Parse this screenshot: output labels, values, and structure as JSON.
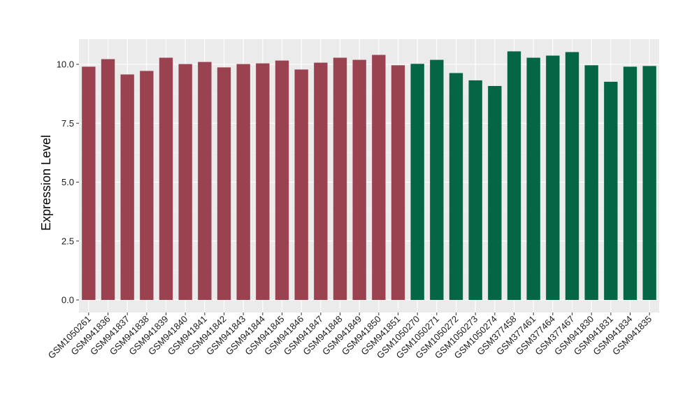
{
  "chart_data": {
    "type": "bar",
    "title": "",
    "xlabel": "",
    "ylabel": "Expression Level",
    "ylim": [
      0,
      11.25
    ],
    "yticks": [
      0.0,
      2.5,
      5.0,
      7.5,
      10.0
    ],
    "ytick_labels": [
      "0.0",
      "2.5",
      "5.0",
      "7.5",
      "10.0"
    ],
    "grid": true,
    "legend": "none",
    "background_color": "#ebebeb",
    "colors": {
      "group_1": "#9b4250",
      "group_2": "#056645"
    },
    "categories": [
      "GSM1050261",
      "GSM941836",
      "GSM941837",
      "GSM941838",
      "GSM941839",
      "GSM941840",
      "GSM941841",
      "GSM941842",
      "GSM941843",
      "GSM941844",
      "GSM941845",
      "GSM941846",
      "GSM941847",
      "GSM941848",
      "GSM941849",
      "GSM941850",
      "GSM941851",
      "GSM1050270",
      "GSM1050271",
      "GSM1050272",
      "GSM1050273",
      "GSM1050274",
      "GSM377458",
      "GSM377461",
      "GSM377464",
      "GSM377467",
      "GSM941830",
      "GSM941831",
      "GSM941834",
      "GSM941835"
    ],
    "values": [
      9.9,
      10.22,
      9.57,
      9.72,
      10.28,
      10.01,
      10.1,
      9.87,
      10.01,
      10.04,
      10.16,
      9.78,
      10.07,
      10.28,
      10.19,
      10.4,
      9.96,
      10.02,
      10.19,
      9.63,
      9.32,
      9.08,
      10.55,
      10.28,
      10.37,
      10.52,
      9.96,
      9.26,
      9.9,
      9.93
    ],
    "bar_groups": [
      1,
      1,
      1,
      1,
      1,
      1,
      1,
      1,
      1,
      1,
      1,
      1,
      1,
      1,
      1,
      1,
      1,
      2,
      2,
      2,
      2,
      2,
      2,
      2,
      2,
      2,
      2,
      2,
      2,
      2
    ]
  }
}
